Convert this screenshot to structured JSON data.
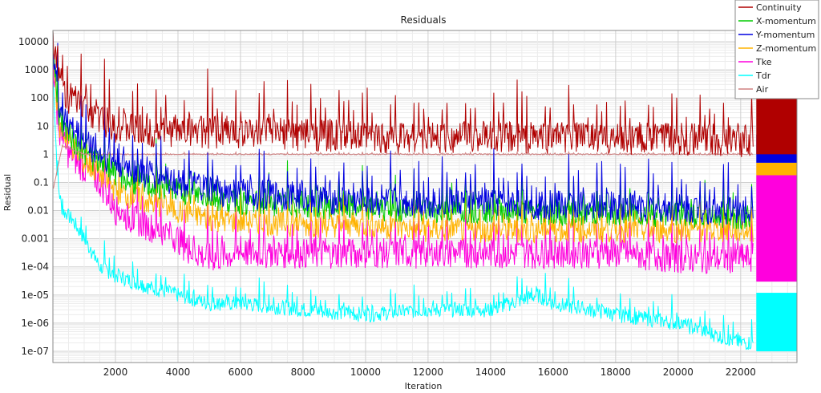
{
  "chart_data": {
    "type": "line",
    "title": "Residuals",
    "xlabel": "Iteration",
    "ylabel": "Residual",
    "xlim": [
      0,
      23800
    ],
    "ylim": [
      4e-08,
      25000
    ],
    "yscale": "log",
    "grid": true,
    "legend_position": "top-right",
    "x_ticks": [
      "2000",
      "4000",
      "6000",
      "8000",
      "10000",
      "12000",
      "14000",
      "16000",
      "18000",
      "20000",
      "22000"
    ],
    "y_ticks": [
      "10000",
      "1000",
      "100",
      "10",
      "1",
      "0.1",
      "0.01",
      "0.001",
      "1e-04",
      "1e-05",
      "1e-06",
      "1e-07"
    ],
    "series": [
      {
        "name": "Continuity",
        "color": "#b00000",
        "x": [
          0,
          200,
          500,
          1000,
          1500,
          2000,
          2500,
          3000,
          4000,
          5000,
          6000,
          8000,
          10000,
          12000,
          14000,
          16000,
          18000,
          20000,
          22000,
          22400
        ],
        "y": [
          20000,
          500,
          100,
          50,
          20,
          10,
          8,
          6,
          7,
          6,
          6,
          5,
          4,
          4,
          4,
          4,
          3.5,
          3.5,
          3,
          3
        ]
      },
      {
        "name": "X-momentum",
        "color": "#00cc00",
        "x": [
          0,
          200,
          500,
          1000,
          1500,
          2000,
          2500,
          3000,
          4000,
          5000,
          6000,
          8000,
          10000,
          12000,
          14000,
          16000,
          18000,
          20000,
          22000,
          22400
        ],
        "y": [
          5000,
          20,
          5,
          1,
          0.5,
          0.2,
          0.1,
          0.08,
          0.05,
          0.03,
          0.02,
          0.015,
          0.012,
          0.01,
          0.01,
          0.008,
          0.008,
          0.007,
          0.006,
          0.006
        ]
      },
      {
        "name": "Y-momentum",
        "color": "#0000e0",
        "x": [
          0,
          200,
          500,
          1000,
          1500,
          2000,
          2500,
          3000,
          4000,
          5000,
          6000,
          8000,
          10000,
          12000,
          14000,
          16000,
          18000,
          20000,
          22000,
          22400
        ],
        "y": [
          8000,
          50,
          10,
          3,
          1,
          0.5,
          0.3,
          0.2,
          0.1,
          0.05,
          0.04,
          0.03,
          0.02,
          0.02,
          0.02,
          0.015,
          0.015,
          0.012,
          0.01,
          0.01
        ]
      },
      {
        "name": "Z-momentum",
        "color": "#ffb300",
        "x": [
          0,
          200,
          500,
          1000,
          1500,
          2000,
          2500,
          3000,
          4000,
          5000,
          6000,
          8000,
          10000,
          12000,
          14000,
          16000,
          18000,
          20000,
          22000,
          22400
        ],
        "y": [
          3000,
          10,
          3,
          0.5,
          0.2,
          0.05,
          0.03,
          0.02,
          0.01,
          0.005,
          0.004,
          0.003,
          0.003,
          0.002,
          0.002,
          0.002,
          0.002,
          0.002,
          0.002,
          0.002
        ]
      },
      {
        "name": "Tke",
        "color": "#ff00dd",
        "x": [
          0,
          200,
          500,
          1000,
          1500,
          2000,
          2500,
          3000,
          4000,
          4300,
          5000,
          6000,
          8000,
          10000,
          12000,
          14000,
          16000,
          18000,
          20000,
          22000,
          22400
        ],
        "y": [
          2000,
          5,
          1,
          0.3,
          0.1,
          0.01,
          0.005,
          0.003,
          0.001,
          0.0004,
          0.0002,
          0.0003,
          0.0003,
          0.0003,
          0.0003,
          0.0003,
          0.0003,
          0.0003,
          0.0002,
          0.0002,
          0.0002
        ]
      },
      {
        "name": "Tdr",
        "color": "#00ffff",
        "x": [
          0,
          150,
          300,
          600,
          1000,
          1500,
          2000,
          3000,
          4000,
          5000,
          6000,
          8000,
          10000,
          12000,
          14000,
          15500,
          16000,
          18000,
          20000,
          22000,
          22400
        ],
        "y": [
          1000,
          0.1,
          0.01,
          0.005,
          0.001,
          0.0001,
          5e-05,
          2e-05,
          1e-05,
          5e-06,
          5e-06,
          3e-06,
          2e-06,
          3e-06,
          3e-06,
          1e-05,
          5e-06,
          2e-06,
          1e-06,
          2e-07,
          2e-07
        ]
      },
      {
        "name": "Air",
        "color": "#d08080",
        "x": [
          0,
          300,
          1000,
          2000,
          4000,
          8000,
          12000,
          16000,
          20000,
          22400
        ],
        "y": [
          0.05,
          2,
          1,
          1,
          1,
          1,
          1,
          1,
          1,
          1
        ]
      }
    ],
    "final_block": {
      "x_range": [
        22500,
        23800
      ],
      "bands": [
        {
          "color": "#00ffff",
          "y_range": [
            1e-07,
            1.2e-05
          ]
        },
        {
          "color": "#ff00dd",
          "y_range": [
            3e-05,
            0.18
          ]
        },
        {
          "color": "#ffb300",
          "y_range": [
            0.18,
            0.5
          ]
        },
        {
          "color": "#0000e0",
          "y_range": [
            0.5,
            5
          ]
        },
        {
          "color": "#b00000",
          "y_range": [
            1,
            500
          ]
        }
      ]
    }
  }
}
